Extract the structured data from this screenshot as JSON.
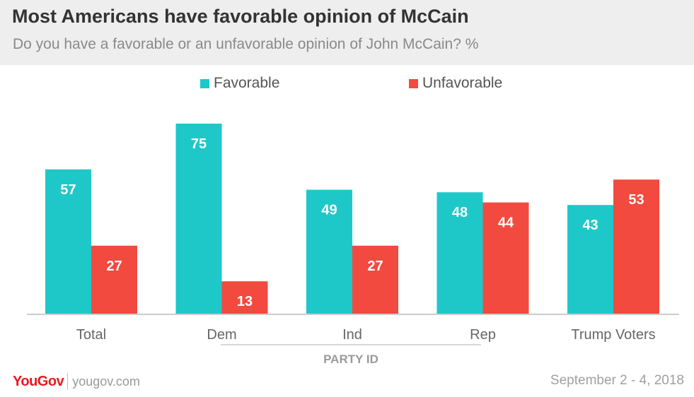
{
  "header": {
    "title": "Most Americans have favorable opinion of McCain",
    "subtitle": "Do you have a favorable or an unfavorable opinion of John McCain? %"
  },
  "footer": {
    "logo": "YouGov",
    "site": "yougov.com",
    "date": "September 2 - 4, 2018"
  },
  "colors": {
    "favorable": "#1ec8c8",
    "unfavorable": "#f24a3f",
    "header_bg": "#eeeeee"
  },
  "chart_data": {
    "type": "bar",
    "categories": [
      "Total",
      "Dem",
      "Ind",
      "Rep",
      "Trump Voters"
    ],
    "series": [
      {
        "name": "Favorable",
        "values": [
          57,
          75,
          49,
          48,
          43
        ]
      },
      {
        "name": "Unfavorable",
        "values": [
          27,
          13,
          27,
          44,
          53
        ]
      }
    ],
    "group_label": "PARTY ID",
    "grouped_categories": [
      "Dem",
      "Ind",
      "Rep"
    ],
    "legend_position": "top-center",
    "grid": false
  }
}
